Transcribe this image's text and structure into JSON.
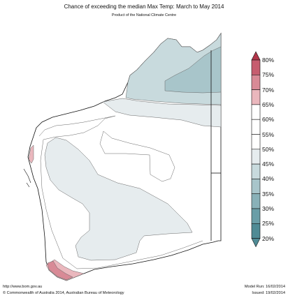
{
  "header": {
    "title": "Chance of exceeding the median Max Temp: March to May 2014",
    "subtitle": "Product of the National Climate Centre"
  },
  "legend": {
    "labels": [
      "80%",
      "75%",
      "70%",
      "65%",
      "60%",
      "55%",
      "50%",
      "45%",
      "40%",
      "35%",
      "30%",
      "25%",
      "20%"
    ],
    "colors": [
      "#b2364a",
      "#c65d6f",
      "#d88a96",
      "#eab7bd",
      "#ffffff",
      "#ffffff",
      "#ffffff",
      "#e6ecee",
      "#c8dadd",
      "#a8c5ca",
      "#89b1b8",
      "#6a9ea7",
      "#4f8b95"
    ]
  },
  "region_colors": {
    "land": "#ffffff",
    "teal_light": "#c8dadd",
    "teal_mid": "#a8c5ca",
    "teal_pale": "#e6ecee",
    "pink_light": "#eab7bd",
    "pink_mid": "#d88a96"
  },
  "footer": {
    "url": "http://www.bom.gov.au",
    "copyright": "©  Commonwealth of Australia 2014, Australian Bureau of Meteorology",
    "model_run": "Model Run: 16/02/2014",
    "issued": "Issued: 19/02/2014"
  }
}
